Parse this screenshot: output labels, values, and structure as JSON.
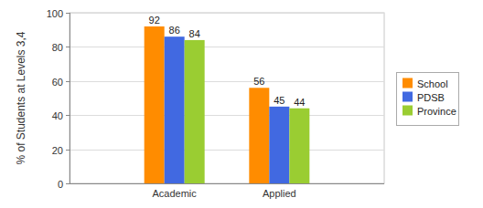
{
  "chart_data": {
    "type": "bar",
    "y_label": "% of Students at Levels 3,4",
    "categories": [
      "Academic",
      "Applied"
    ],
    "series": [
      {
        "name": "School",
        "color": "#ff8c00",
        "values": [
          92,
          56
        ]
      },
      {
        "name": "PDSB",
        "color": "#4169e1",
        "values": [
          86,
          45
        ]
      },
      {
        "name": "Province",
        "color": "#9acd32",
        "values": [
          84,
          44
        ]
      }
    ],
    "ylim": [
      0,
      100
    ],
    "yticks": [
      0,
      20,
      40,
      60,
      80,
      100
    ],
    "grid": true,
    "legend": "right",
    "data_labels": true
  }
}
